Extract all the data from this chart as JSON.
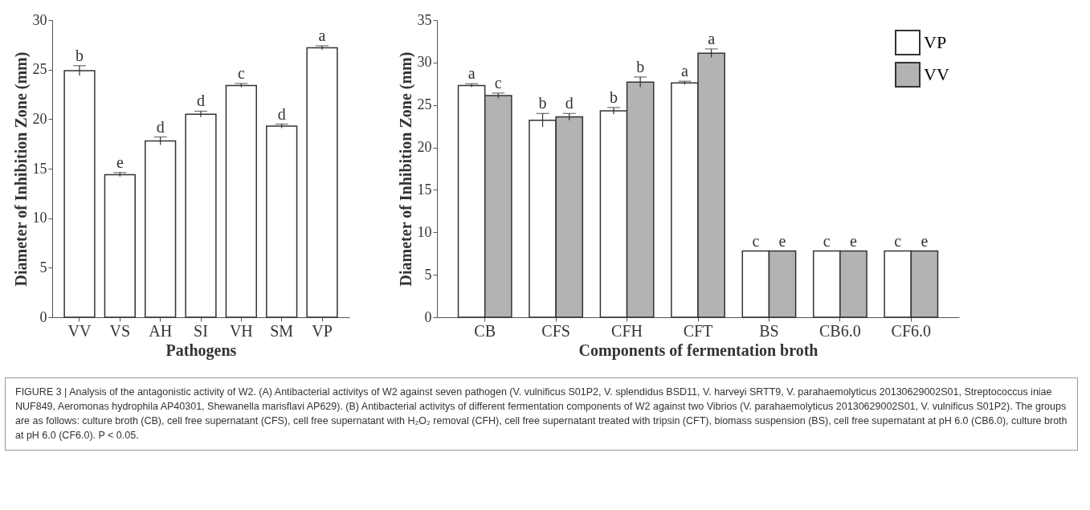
{
  "chart_data": [
    {
      "type": "bar",
      "xlabel": "Pathogens",
      "ylabel": "Diameter of Inhibition Zone (mm)",
      "categories": [
        "VV",
        "VS",
        "AH",
        "SI",
        "VH",
        "SM",
        "VP"
      ],
      "values": [
        24.9,
        14.4,
        17.8,
        20.5,
        23.4,
        19.3,
        27.2
      ],
      "color": "#ffffff",
      "errors": [
        0.5,
        0.2,
        0.4,
        0.3,
        0.2,
        0.2,
        0.2
      ],
      "value_labels": [
        "b",
        "e",
        "d",
        "d",
        "c",
        "d",
        "a"
      ],
      "ylim": [
        0,
        30
      ],
      "yticks": [
        0,
        5,
        10,
        15,
        20,
        25,
        30
      ],
      "grid": false,
      "annotations": [
        "FIGURE 3 | Analysis of the antagonistic activity of W2. (A) Antibacterial activitys of W2 against seven pathogen (V. vulnificus S01P2, V. splendidus BSD11, V. harveyi SRTT9, V. parahaemolyticus 20130629002S01, Streptococcus iniae NUF849, Aeromonas hydrophila AP40301, Shewanella marisflavi AP629). (B) Antibacterial activitys of different fermentation components of W2 against two Vibrios (V. parahaemolyticus 20130629002S01, V. vulnificus S01P2). The groups are as follows: culture broth (CB), cell free supernatant (CFS), cell free supernatant with H₂O₂ removal (CFH), cell free supernatant treated with tripsin (CFT), biomass suspension (BS), cell free supernatant at pH 6.0 (CB6.0), culture broth at pH 6.0 (CF6.0). P < 0.05."
      ]
    },
    {
      "type": "bar",
      "xlabel": "Components of fermentation broth",
      "ylabel": "Diameter of Inhibition Zone (mm)",
      "categories": [
        "CB",
        "CFS",
        "CFH",
        "CFT",
        "BS",
        "CB6.0",
        "CF6.0"
      ],
      "series": [
        {
          "name": "VP",
          "color": "#ffffff",
          "values": [
            27.3,
            23.2,
            24.3,
            27.6,
            7.8,
            7.8,
            7.8
          ],
          "errors": [
            0.2,
            0.8,
            0.4,
            0.2,
            null,
            null,
            null
          ],
          "value_labels": [
            "a",
            "b",
            "b",
            "a",
            "c",
            "c",
            "c"
          ]
        },
        {
          "name": "VV",
          "color": "#b3b3b3",
          "values": [
            26.1,
            23.6,
            27.7,
            31.1,
            7.8,
            7.8,
            7.8
          ],
          "errors": [
            0.3,
            0.4,
            0.6,
            0.5,
            null,
            null,
            null
          ],
          "value_labels": [
            "c",
            "d",
            "b",
            "a",
            "e",
            "e",
            "e"
          ]
        }
      ],
      "ylim": [
        0,
        35
      ],
      "yticks": [
        0,
        5,
        10,
        15,
        20,
        25,
        30,
        35
      ],
      "grid": false,
      "legend": "top right"
    }
  ]
}
